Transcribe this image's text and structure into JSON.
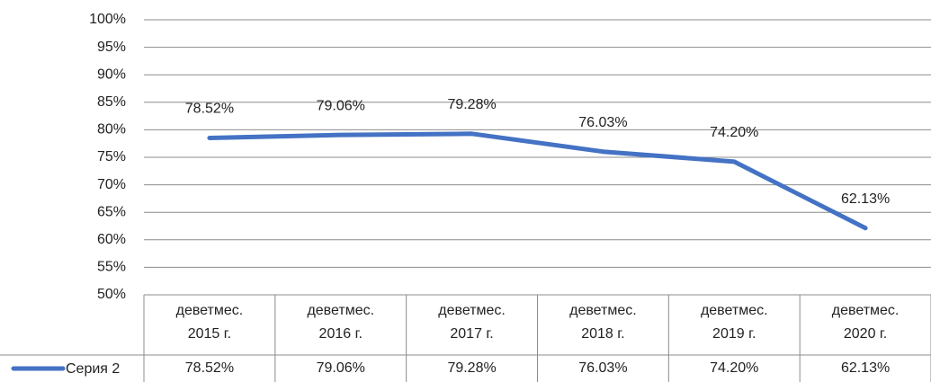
{
  "chart_data": {
    "type": "line",
    "categories": [
      "деветмес.\n2015 г.",
      "деветмес.\n2016 г.",
      "деветмес.\n2017 г.",
      "деветмес.\n2018 г.",
      "деветмес.\n2019 г.",
      "деветмес.\n2020 г."
    ],
    "series": [
      {
        "name": "Серия 2",
        "color": "#4472c4",
        "values": [
          78.52,
          79.06,
          79.28,
          76.03,
          74.2,
          62.13
        ],
        "value_labels": [
          "78.52%",
          "79.06%",
          "79.28%",
          "76.03%",
          "74.20%",
          "62.13%"
        ]
      }
    ],
    "ylim": [
      50,
      100
    ],
    "yticks": [
      {
        "value": 50,
        "label": "50%"
      },
      {
        "value": 55,
        "label": "55%"
      },
      {
        "value": 60,
        "label": "60%"
      },
      {
        "value": 65,
        "label": "65%"
      },
      {
        "value": 70,
        "label": "70%"
      },
      {
        "value": 75,
        "label": "75%"
      },
      {
        "value": 80,
        "label": "80%"
      },
      {
        "value": 85,
        "label": "85%"
      },
      {
        "value": 90,
        "label": "90%"
      },
      {
        "value": 95,
        "label": "95%"
      },
      {
        "value": 100,
        "label": "100%"
      }
    ],
    "grid": true
  }
}
